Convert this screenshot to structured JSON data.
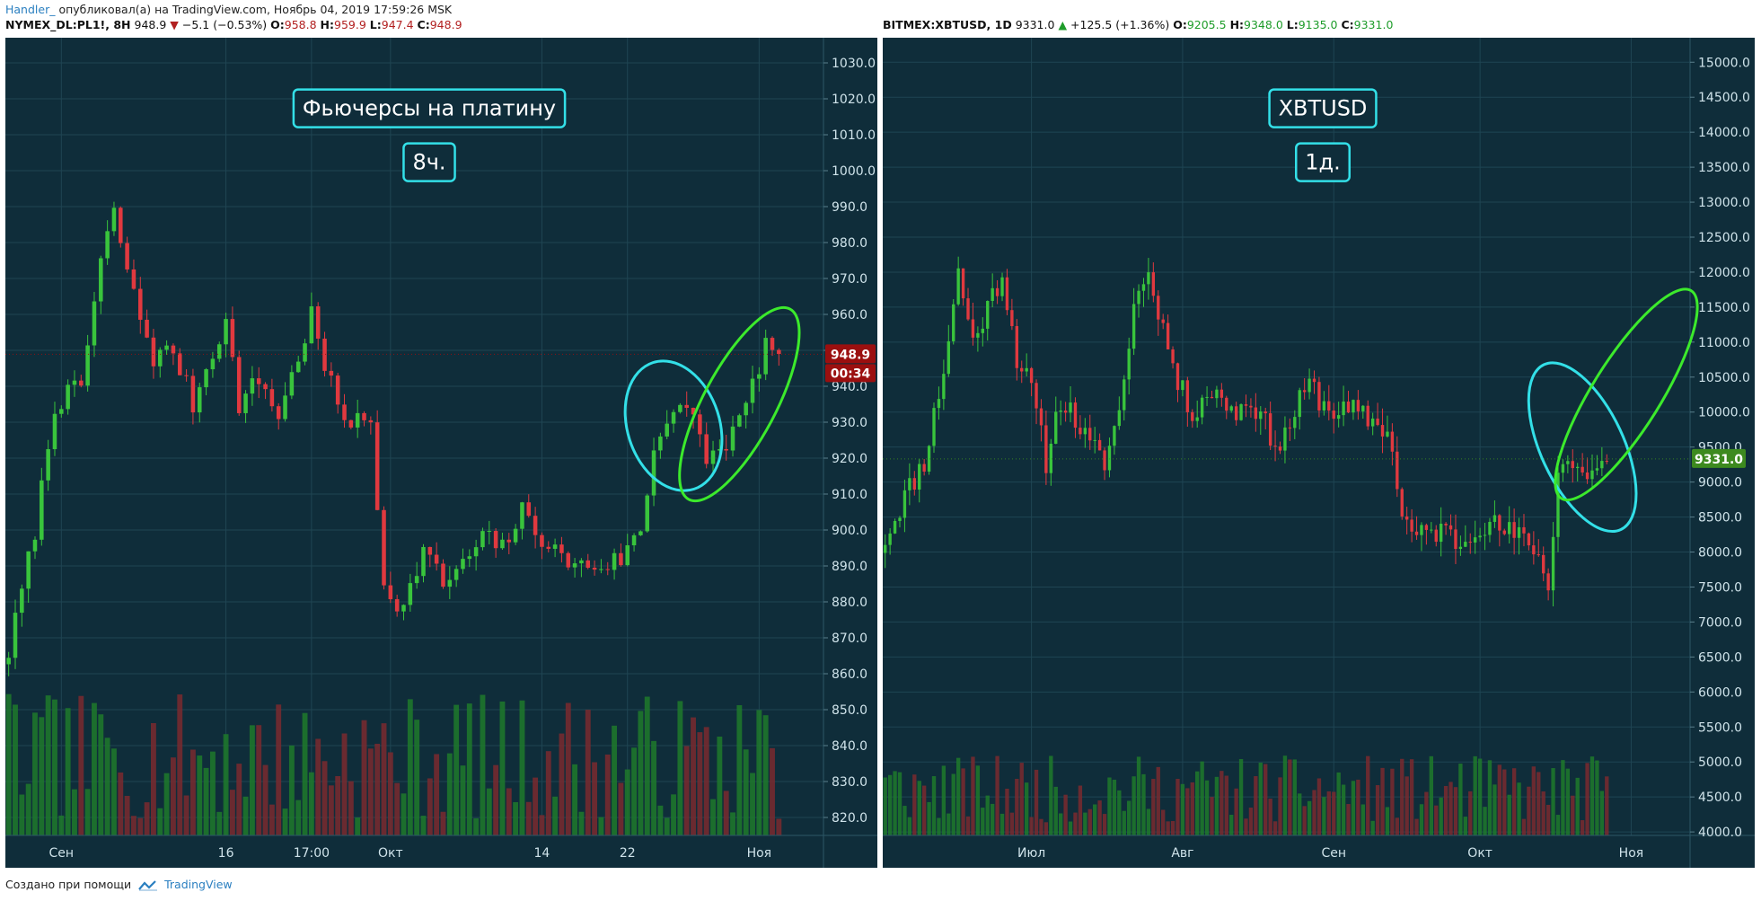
{
  "header": {
    "author": "Handler_",
    "published_text": "опубликовал(а) на TradingView.com, Ноябрь 04, 2019 17:59:26 MSK"
  },
  "footer": {
    "prefix": "Создано при помощи",
    "brand": "TradingView",
    "logo_icon": "tradingview-logo-icon"
  },
  "colors": {
    "background": "#0f2d3a",
    "grid": "#1f4553",
    "up": "#39c43c",
    "down": "#e0393f",
    "volume_up": "#1f7a2c",
    "volume_down": "#7a2a2f",
    "axis_text": "#cfe3ea",
    "annotation_box": "#33e0e8",
    "ellipse_cyan": "#33e0e8",
    "ellipse_green": "#3cea2c",
    "last_price_bg_left": "#9b0f0f",
    "last_price_bg_right": "#3d8a1f"
  },
  "chart_data": [
    {
      "type": "candlestick",
      "symbol": "NYMEX_DL:PL1!",
      "interval": "8H",
      "legend": {
        "symbol": "NYMEX_DL:PL1!, 8H",
        "last": "948.9",
        "change": "−5.1 (−0.53%)",
        "direction": "down",
        "O": "958.8",
        "H": "959.9",
        "L": "947.4",
        "C": "948.9"
      },
      "annotations": {
        "title": "Фьючерсы на платину",
        "timeframe": "8ч."
      },
      "price_label": {
        "value": "948.9",
        "countdown": "00:34"
      },
      "y_ticks": [
        820,
        830,
        840,
        850,
        860,
        870,
        880,
        890,
        900,
        910,
        920,
        930,
        940,
        950,
        960,
        970,
        980,
        990,
        1000,
        1010,
        1020,
        1030
      ],
      "ylim": [
        815,
        1037
      ],
      "x_ticks": [
        {
          "label": "Сен",
          "index": 8
        },
        {
          "label": "16",
          "index": 33
        },
        {
          "label": "17:00",
          "index": 46
        },
        {
          "label": "Окт",
          "index": 58
        },
        {
          "label": "14",
          "index": 81
        },
        {
          "label": "22",
          "index": 94
        },
        {
          "label": "Ноя",
          "index": 114
        }
      ],
      "anchors": [
        [
          0,
          866
        ],
        [
          4,
          900
        ],
        [
          7,
          935
        ],
        [
          11,
          940
        ],
        [
          14,
          975
        ],
        [
          16,
          988
        ],
        [
          19,
          965
        ],
        [
          22,
          948
        ],
        [
          25,
          950
        ],
        [
          28,
          935
        ],
        [
          31,
          950
        ],
        [
          33,
          958
        ],
        [
          35,
          935
        ],
        [
          38,
          942
        ],
        [
          41,
          932
        ],
        [
          44,
          948
        ],
        [
          46,
          960
        ],
        [
          48,
          945
        ],
        [
          50,
          935
        ],
        [
          52,
          930
        ],
        [
          55,
          930
        ],
        [
          57,
          885
        ],
        [
          60,
          878
        ],
        [
          63,
          895
        ],
        [
          66,
          885
        ],
        [
          69,
          890
        ],
        [
          72,
          898
        ],
        [
          75,
          895
        ],
        [
          78,
          905
        ],
        [
          81,
          898
        ],
        [
          84,
          892
        ],
        [
          87,
          890
        ],
        [
          90,
          890
        ],
        [
          93,
          892
        ],
        [
          96,
          900
        ],
        [
          98,
          922
        ],
        [
          100,
          932
        ],
        [
          102,
          935
        ],
        [
          104,
          930
        ],
        [
          106,
          920
        ],
        [
          108,
          922
        ],
        [
          111,
          930
        ],
        [
          113,
          940
        ],
        [
          115,
          952
        ],
        [
          117,
          949
        ]
      ],
      "ellipses": [
        {
          "name": "ellipse-cyan",
          "cx": 101,
          "cy": 929,
          "rx_bars": 7,
          "ry_price": 18.5,
          "angle": -18
        },
        {
          "name": "ellipse-green",
          "cx": 111,
          "cy": 935,
          "rx_bars": 5.5,
          "ry_price": 30,
          "angle": 28
        }
      ]
    },
    {
      "type": "candlestick",
      "symbol": "BITMEX:XBTUSD",
      "interval": "1D",
      "legend": {
        "symbol": "BITMEX:XBTUSD, 1D",
        "last": "9331.0",
        "change": "+125.5 (+1.36%)",
        "direction": "up",
        "O": "9205.5",
        "H": "9348.0",
        "L": "9135.0",
        "C": "9331.0"
      },
      "annotations": {
        "title": "XBTUSD",
        "timeframe": "1д."
      },
      "price_label": {
        "value": "9331.0"
      },
      "y_ticks": [
        4000,
        4500,
        5000,
        5500,
        6000,
        6500,
        7000,
        7500,
        8000,
        8500,
        9000,
        9500,
        10000,
        10500,
        11000,
        11500,
        12000,
        12500,
        13000,
        13500,
        14000,
        14500,
        15000
      ],
      "ylim": [
        3950,
        15350
      ],
      "x_ticks": [
        {
          "label": "Июл",
          "index": 30
        },
        {
          "label": "Авг",
          "index": 61
        },
        {
          "label": "Сен",
          "index": 92
        },
        {
          "label": "Окт",
          "index": 122
        },
        {
          "label": "Ноя",
          "index": 153
        }
      ],
      "anchors": [
        [
          0,
          8200
        ],
        [
          4,
          8800
        ],
        [
          8,
          9300
        ],
        [
          12,
          10600
        ],
        [
          15,
          12000
        ],
        [
          18,
          11000
        ],
        [
          21,
          11500
        ],
        [
          24,
          12000
        ],
        [
          27,
          10800
        ],
        [
          30,
          10300
        ],
        [
          33,
          9300
        ],
        [
          36,
          10200
        ],
        [
          39,
          9900
        ],
        [
          42,
          9500
        ],
        [
          45,
          9300
        ],
        [
          48,
          10000
        ],
        [
          51,
          11500
        ],
        [
          53,
          12000
        ],
        [
          55,
          11800
        ],
        [
          57,
          11200
        ],
        [
          60,
          10400
        ],
        [
          63,
          10000
        ],
        [
          66,
          10300
        ],
        [
          69,
          10200
        ],
        [
          72,
          10000
        ],
        [
          75,
          10200
        ],
        [
          78,
          9800
        ],
        [
          81,
          9500
        ],
        [
          84,
          10000
        ],
        [
          87,
          10400
        ],
        [
          90,
          10100
        ],
        [
          93,
          10000
        ],
        [
          96,
          10000
        ],
        [
          99,
          9900
        ],
        [
          102,
          9800
        ],
        [
          104,
          9500
        ],
        [
          106,
          8500
        ],
        [
          109,
          8200
        ],
        [
          112,
          8300
        ],
        [
          115,
          8300
        ],
        [
          118,
          8100
        ],
        [
          121,
          8400
        ],
        [
          124,
          8400
        ],
        [
          127,
          8300
        ],
        [
          130,
          8200
        ],
        [
          133,
          8100
        ],
        [
          136,
          7500
        ],
        [
          138,
          9200
        ],
        [
          140,
          9300
        ],
        [
          143,
          9100
        ],
        [
          146,
          9200
        ],
        [
          148,
          9300
        ]
      ],
      "ellipses": [
        {
          "name": "ellipse-cyan",
          "cx": 143,
          "cy": 9500,
          "rx_bars": 8.5,
          "ry_price": 1300,
          "angle": -25
        },
        {
          "name": "ellipse-green",
          "cx": 152,
          "cy": 10250,
          "rx_bars": 7,
          "ry_price": 1750,
          "angle": 32
        }
      ]
    }
  ]
}
